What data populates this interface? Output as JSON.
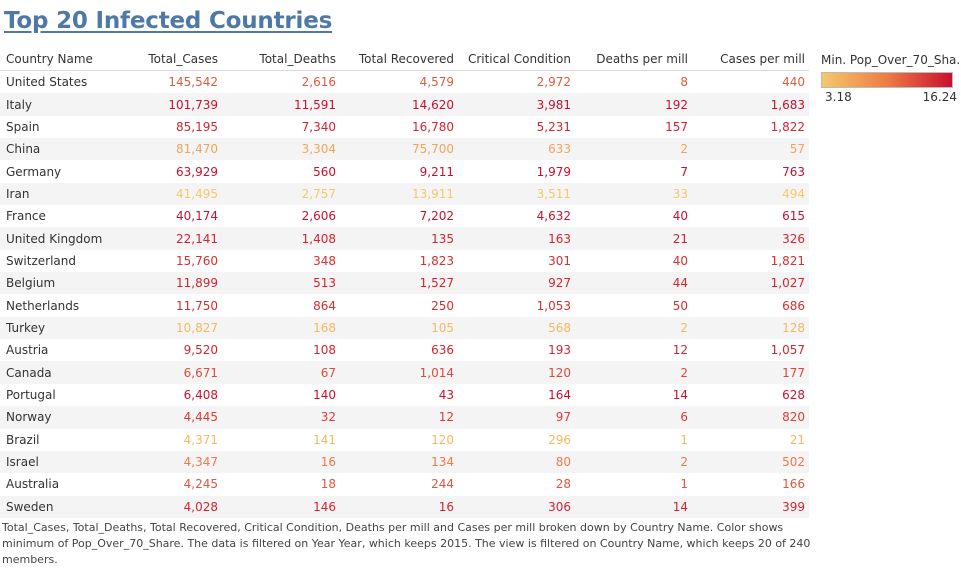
{
  "title": "Top 20 Infected Countries",
  "columns": [
    "Country Name",
    "Total_Cases",
    "Total_Deaths",
    "Total Recovered",
    "Critical Condition",
    "Deaths per mill",
    "Cases per mill"
  ],
  "rows": [
    {
      "country": "United States",
      "cells": [
        "145,542",
        "2,616",
        "4,579",
        "2,972",
        "8",
        "440"
      ],
      "color": "#e05a3e"
    },
    {
      "country": "Italy",
      "cells": [
        "101,739",
        "11,591",
        "14,620",
        "3,981",
        "192",
        "1,683"
      ],
      "color": "#c8102e"
    },
    {
      "country": "Spain",
      "cells": [
        "85,195",
        "7,340",
        "16,780",
        "5,231",
        "157",
        "1,822"
      ],
      "color": "#d3242f"
    },
    {
      "country": "China",
      "cells": [
        "81,470",
        "3,304",
        "75,700",
        "633",
        "2",
        "57"
      ],
      "color": "#f2a55a"
    },
    {
      "country": "Germany",
      "cells": [
        "63,929",
        "560",
        "9,211",
        "1,979",
        "7",
        "763"
      ],
      "color": "#c8102e"
    },
    {
      "country": "Iran",
      "cells": [
        "41,495",
        "2,757",
        "13,911",
        "3,511",
        "33",
        "494"
      ],
      "color": "#f5c86a"
    },
    {
      "country": "France",
      "cells": [
        "40,174",
        "2,606",
        "7,202",
        "4,632",
        "40",
        "615"
      ],
      "color": "#c8102e"
    },
    {
      "country": "United Kingdom",
      "cells": [
        "22,141",
        "1,408",
        "135",
        "163",
        "21",
        "326"
      ],
      "color": "#d3242f"
    },
    {
      "country": "Switzerland",
      "cells": [
        "15,760",
        "348",
        "1,823",
        "301",
        "40",
        "1,821"
      ],
      "color": "#d72e30"
    },
    {
      "country": "Belgium",
      "cells": [
        "11,899",
        "513",
        "1,527",
        "927",
        "44",
        "1,027"
      ],
      "color": "#d3242f"
    },
    {
      "country": "Netherlands",
      "cells": [
        "11,750",
        "864",
        "250",
        "1,053",
        "50",
        "686"
      ],
      "color": "#d72e30"
    },
    {
      "country": "Turkey",
      "cells": [
        "10,827",
        "168",
        "105",
        "568",
        "2",
        "128"
      ],
      "color": "#f4b860"
    },
    {
      "country": "Austria",
      "cells": [
        "9,520",
        "108",
        "636",
        "193",
        "12",
        "1,057"
      ],
      "color": "#d3242f"
    },
    {
      "country": "Canada",
      "cells": [
        "6,671",
        "67",
        "1,014",
        "120",
        "2",
        "177"
      ],
      "color": "#e0493c"
    },
    {
      "country": "Portugal",
      "cells": [
        "6,408",
        "140",
        "43",
        "164",
        "14",
        "628"
      ],
      "color": "#c8102e"
    },
    {
      "country": "Norway",
      "cells": [
        "4,445",
        "32",
        "12",
        "97",
        "6",
        "820"
      ],
      "color": "#dc3c36"
    },
    {
      "country": "Brazil",
      "cells": [
        "4,371",
        "141",
        "120",
        "296",
        "1",
        "21"
      ],
      "color": "#f4b860"
    },
    {
      "country": "Israel",
      "cells": [
        "4,347",
        "16",
        "134",
        "80",
        "2",
        "502"
      ],
      "color": "#ec7a4a"
    },
    {
      "country": "Australia",
      "cells": [
        "4,245",
        "18",
        "244",
        "28",
        "1",
        "166"
      ],
      "color": "#e4553e"
    },
    {
      "country": "Sweden",
      "cells": [
        "4,028",
        "146",
        "16",
        "306",
        "14",
        "399"
      ],
      "color": "#d3242f"
    }
  ],
  "legend": {
    "title": "Min. Pop_Over_70_Sha..",
    "min_label": "3.18",
    "max_label": "16.24",
    "gradient": [
      "#f5c86a",
      "#ee7b45",
      "#c8102e"
    ]
  },
  "footer": "Total_Cases, Total_Deaths, Total Recovered, Critical Condition, Deaths per mill and Cases per mill broken down by Country Name.  Color shows minimum of Pop_Over_70_Share. The data is filtered on Year Year, which keeps 2015. The view is filtered on Country Name, which keeps 20 of 240 members."
}
